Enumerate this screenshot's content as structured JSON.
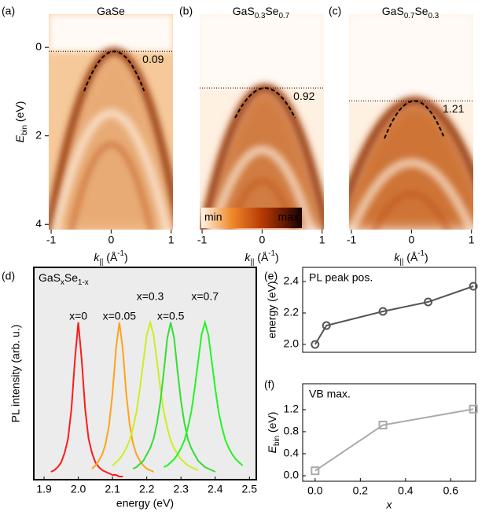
{
  "chart_data": [
    {
      "type": "heatmap",
      "panel_label": "(a)",
      "title": [
        "GaSe"
      ],
      "vbm": 0.09,
      "xlabel": [
        "k",
        "||",
        " (Å",
        "-1",
        ")"
      ],
      "ylabel": [
        "E",
        "bin",
        " (eV)"
      ],
      "xlim": [
        -1.04,
        1.03
      ],
      "xticks": [
        -1,
        0,
        1
      ],
      "ylim": [
        -0.75,
        4.12
      ],
      "yticks": [
        0,
        2,
        4
      ]
    },
    {
      "type": "heatmap",
      "panel_label": "(b)",
      "title": [
        "GaS",
        "0.3",
        "Se",
        "0.7"
      ],
      "vbm": 0.92,
      "xlabel": [
        "k",
        "||",
        " (Å",
        "-1",
        ")"
      ],
      "colorbar": [
        "min",
        "max"
      ],
      "xlim": [
        -1.04,
        1.03
      ],
      "xticks": [
        -1,
        0,
        1
      ],
      "ylim": [
        -0.75,
        4.12
      ]
    },
    {
      "type": "heatmap",
      "panel_label": "(c)",
      "title": [
        "GaS",
        "0.7",
        "Se",
        "0.3"
      ],
      "vbm": 1.21,
      "xlabel": [
        "k",
        "||",
        " (Å",
        "-1",
        ")"
      ],
      "xlim": [
        -1.04,
        1.03
      ],
      "xticks": [
        -1,
        0,
        1
      ],
      "ylim": [
        -0.75,
        4.12
      ]
    },
    {
      "type": "line",
      "panel_label": "(d)",
      "title": [
        "GaS",
        "x",
        "Se",
        "1-x"
      ],
      "xlabel": "energy (eV)",
      "ylabel": "PL intensity (arb. u.)",
      "background": "#ececec",
      "x": [
        1.92,
        1.93,
        1.94,
        1.95,
        1.96,
        1.97,
        1.98,
        1.99,
        2.0,
        2.01,
        2.02,
        2.03,
        2.04,
        2.05,
        2.06,
        2.07,
        2.08,
        2.09,
        2.1,
        2.11,
        2.12,
        2.13,
        2.14,
        2.15,
        2.16,
        2.17,
        2.18,
        2.19,
        2.2,
        2.21,
        2.22,
        2.23,
        2.24,
        2.25,
        2.26,
        2.27,
        2.28,
        2.29,
        2.3,
        2.31,
        2.32,
        2.33,
        2.34,
        2.35,
        2.36,
        2.37,
        2.38,
        2.39,
        2.4,
        2.41,
        2.42,
        2.43,
        2.44,
        2.45,
        2.46,
        2.47,
        2.48
      ],
      "xlim": [
        1.87,
        2.52
      ],
      "xticks": [
        1.9,
        {
          "value": 2.0,
          "label": "2.0"
        },
        2.1,
        2.2,
        2.3,
        2.4,
        2.5
      ],
      "ylim": [
        0,
        1.35
      ],
      "series": [
        {
          "name": "x=0",
          "color": "#ff1a1a",
          "values": [
            0.05,
            0.06,
            0.08,
            0.11,
            0.17,
            0.26,
            0.45,
            0.76,
            1.0,
            0.76,
            0.45,
            0.26,
            0.17,
            0.11,
            0.08,
            0.06,
            0.05,
            0.04,
            0.03,
            0.03,
            0.02,
            0.02,
            null,
            null,
            null,
            null,
            null,
            null,
            null,
            null,
            null,
            null,
            null,
            null,
            null,
            null,
            null,
            null,
            null,
            null,
            null,
            null,
            null,
            null,
            null,
            null,
            null,
            null,
            null,
            null,
            null,
            null,
            null,
            null,
            null,
            null,
            null
          ]
        },
        {
          "name": "x=0.05",
          "color": "#ffa31a",
          "values": [
            null,
            null,
            null,
            null,
            null,
            null,
            null,
            null,
            null,
            null,
            null,
            null,
            0.07,
            0.09,
            0.12,
            0.16,
            0.23,
            0.35,
            0.55,
            0.83,
            1.0,
            0.83,
            0.55,
            0.35,
            0.23,
            0.16,
            0.12,
            0.09,
            0.07,
            0.06,
            0.05,
            null,
            null,
            null,
            null,
            null,
            null,
            null,
            null,
            null,
            null,
            null,
            null,
            null,
            null,
            null,
            null,
            null,
            null,
            null,
            null,
            null,
            null,
            null,
            null,
            null,
            null
          ]
        },
        {
          "name": "x=0.3",
          "color": "#ccee22",
          "values": [
            null,
            null,
            null,
            null,
            null,
            null,
            null,
            null,
            null,
            null,
            null,
            null,
            null,
            null,
            null,
            null,
            null,
            null,
            0.09,
            0.11,
            0.13,
            0.16,
            0.2,
            0.25,
            0.33,
            0.43,
            0.58,
            0.75,
            0.92,
            1.0,
            0.92,
            0.75,
            0.58,
            0.43,
            0.33,
            0.25,
            0.2,
            0.16,
            0.13,
            0.11,
            0.09,
            0.08,
            0.07,
            0.06,
            null,
            null,
            null,
            null,
            null,
            null,
            null,
            null,
            null,
            null,
            null,
            null,
            null
          ]
        },
        {
          "name": "x=0.5",
          "color": "#33dd33",
          "values": [
            null,
            null,
            null,
            null,
            null,
            null,
            null,
            null,
            null,
            null,
            null,
            null,
            null,
            null,
            null,
            null,
            null,
            null,
            null,
            null,
            null,
            null,
            null,
            null,
            0.07,
            0.08,
            0.1,
            0.12,
            0.16,
            0.2,
            0.26,
            0.36,
            0.5,
            0.69,
            0.9,
            1.0,
            0.9,
            0.69,
            0.5,
            0.36,
            0.26,
            0.2,
            0.16,
            0.12,
            0.1,
            0.08,
            0.07,
            0.06,
            0.05,
            null,
            null,
            null,
            null,
            null,
            null,
            null,
            null
          ]
        },
        {
          "name": "x=0.7",
          "color": "#22f522",
          "values": [
            null,
            null,
            null,
            null,
            null,
            null,
            null,
            null,
            null,
            null,
            null,
            null,
            null,
            null,
            null,
            null,
            null,
            null,
            null,
            null,
            null,
            null,
            null,
            null,
            null,
            null,
            null,
            null,
            null,
            null,
            null,
            null,
            null,
            0.08,
            0.09,
            0.11,
            0.13,
            0.16,
            0.2,
            0.25,
            0.33,
            0.43,
            0.58,
            0.75,
            0.92,
            1.0,
            0.92,
            0.75,
            0.58,
            0.43,
            0.33,
            0.25,
            0.2,
            0.16,
            0.13,
            0.11,
            0.09
          ]
        }
      ]
    },
    {
      "type": "line",
      "panel_label": "(e)",
      "ylabel": "energy (eV)",
      "legend": "upper left",
      "x": [
        0,
        0.05,
        0.3,
        0.5,
        0.7
      ],
      "xlim": [
        -0.055,
        0.71
      ],
      "ylim": [
        1.95,
        2.49
      ],
      "yticks": [
        {
          "value": 2.0,
          "label": "2.0"
        },
        2.2,
        2.4
      ],
      "series": [
        {
          "name": "PL peak pos.",
          "color": "#555555",
          "marker": "circle",
          "values": [
            2.0,
            2.12,
            2.21,
            2.27,
            2.37
          ]
        }
      ]
    },
    {
      "type": "line",
      "panel_label": "(f)",
      "ylabel": [
        "E",
        "bin",
        " (eV)"
      ],
      "xlabel": "x",
      "legend": "upper left",
      "x": [
        0,
        0.3,
        0.7
      ],
      "xlim": [
        -0.055,
        0.71
      ],
      "xticks": [
        {
          "value": 0,
          "label": "0.0"
        },
        0.2,
        0.4,
        0.6
      ],
      "ylim": [
        -0.1,
        1.67
      ],
      "yticks": [
        {
          "value": 0,
          "label": "0.0"
        },
        0.4,
        0.8,
        1.2
      ],
      "series": [
        {
          "name": "VB max.",
          "color": "#aaaaaa",
          "marker": "square",
          "values": [
            0.09,
            0.92,
            1.21
          ]
        }
      ]
    }
  ]
}
